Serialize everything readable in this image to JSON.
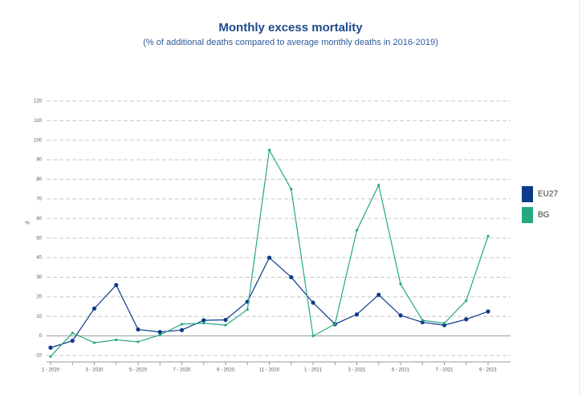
{
  "chart_data": {
    "type": "line",
    "title": "Monthly excess mortality",
    "subtitle": "(% of additional deaths compared to average monthly deaths in 2016-2019)",
    "y_label": "%",
    "categories": [
      "1 - 2020",
      null,
      "3 - 2020",
      null,
      "5 - 2020",
      null,
      "7 - 2020",
      null,
      "9 - 2020",
      null,
      "11 - 2020",
      null,
      "1 - 2021",
      null,
      "3 - 2021",
      null,
      "5 - 2021",
      null,
      "7 - 2021",
      null,
      "9 - 2021"
    ],
    "series": [
      {
        "name": "EU27",
        "color": "#0d3a8a",
        "values": [
          -6,
          -2.5,
          14,
          26,
          3.3,
          2,
          3,
          8,
          8.2,
          17.5,
          40,
          30,
          17,
          6,
          11,
          21,
          10.5,
          7,
          5.5,
          8.5,
          12.5
        ]
      },
      {
        "name": "BG",
        "color": "#26a883",
        "values": [
          -10.5,
          1.5,
          -3.5,
          -2,
          -3,
          0.5,
          6,
          6.5,
          5.5,
          13.5,
          95,
          75,
          0,
          6,
          54,
          77,
          26.5,
          8,
          6.5,
          18,
          51
        ]
      }
    ],
    "ylim": [
      -12,
      122
    ],
    "yticks": [
      -10,
      0,
      10,
      20,
      30,
      40,
      50,
      60,
      70,
      80,
      90,
      100,
      110,
      120
    ],
    "grid": true
  }
}
